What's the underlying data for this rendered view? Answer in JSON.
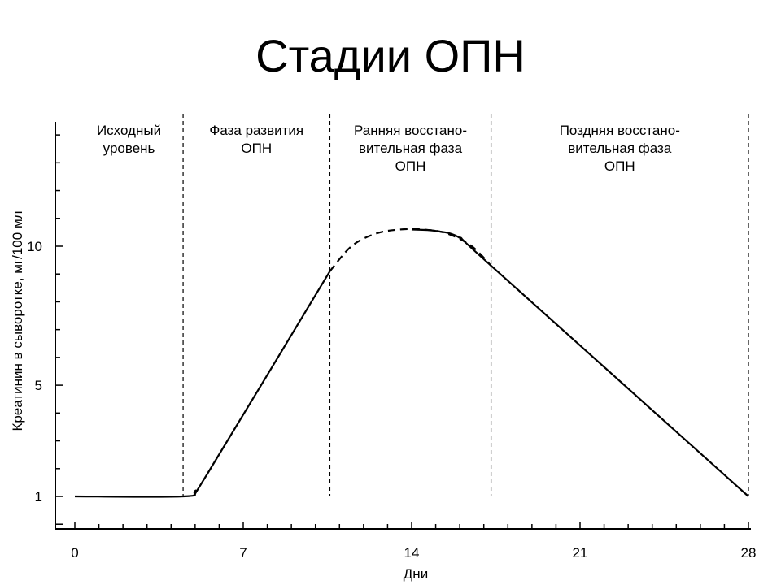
{
  "slide": {
    "title": "Стадии ОПН"
  },
  "chart_data": {
    "type": "line",
    "xlabel": "Дни",
    "ylabel": "Креатинин в сыворотке, мг/100 мл",
    "xlim": [
      0,
      28
    ],
    "ylim": [
      0,
      15
    ],
    "x_ticks": [
      0,
      7,
      14,
      21,
      28
    ],
    "y_ticks": [
      1,
      5,
      10
    ],
    "line_color": "#000000",
    "phases": [
      {
        "label_lines": [
          "Исходный",
          "уровень"
        ],
        "x_start": 0,
        "x_end": 4.5
      },
      {
        "label_lines": [
          "Фаза развития",
          "ОПН"
        ],
        "x_start": 4.5,
        "x_end": 10.6
      },
      {
        "label_lines": [
          "Ранняя восстано-",
          "вительная фаза",
          "ОПН"
        ],
        "x_start": 10.6,
        "x_end": 17.3
      },
      {
        "label_lines": [
          "Поздняя восстано-",
          "вительная фаза",
          "ОПН"
        ],
        "x_start": 17.3,
        "x_end": 28
      }
    ],
    "boundaries": [
      4.5,
      10.6,
      17.3,
      28
    ],
    "series": [
      {
        "style": "solid",
        "points": [
          [
            0,
            1.0
          ],
          [
            4.5,
            1.0
          ],
          [
            5.0,
            1.2
          ],
          [
            5.5,
            1.8
          ],
          [
            10.6,
            9.1
          ]
        ]
      },
      {
        "style": "dashed",
        "points": [
          [
            10.6,
            9.1
          ],
          [
            11.5,
            10.0
          ],
          [
            12.5,
            10.45
          ],
          [
            13.5,
            10.6
          ],
          [
            14.5,
            10.6
          ],
          [
            15.5,
            10.45
          ],
          [
            16.5,
            10.0
          ],
          [
            17.3,
            9.3
          ]
        ]
      },
      {
        "style": "solid",
        "points": [
          [
            14.0,
            10.6
          ],
          [
            15.0,
            10.55
          ],
          [
            16.0,
            10.3
          ],
          [
            17.3,
            9.3
          ],
          [
            28,
            1.0
          ]
        ]
      }
    ]
  }
}
